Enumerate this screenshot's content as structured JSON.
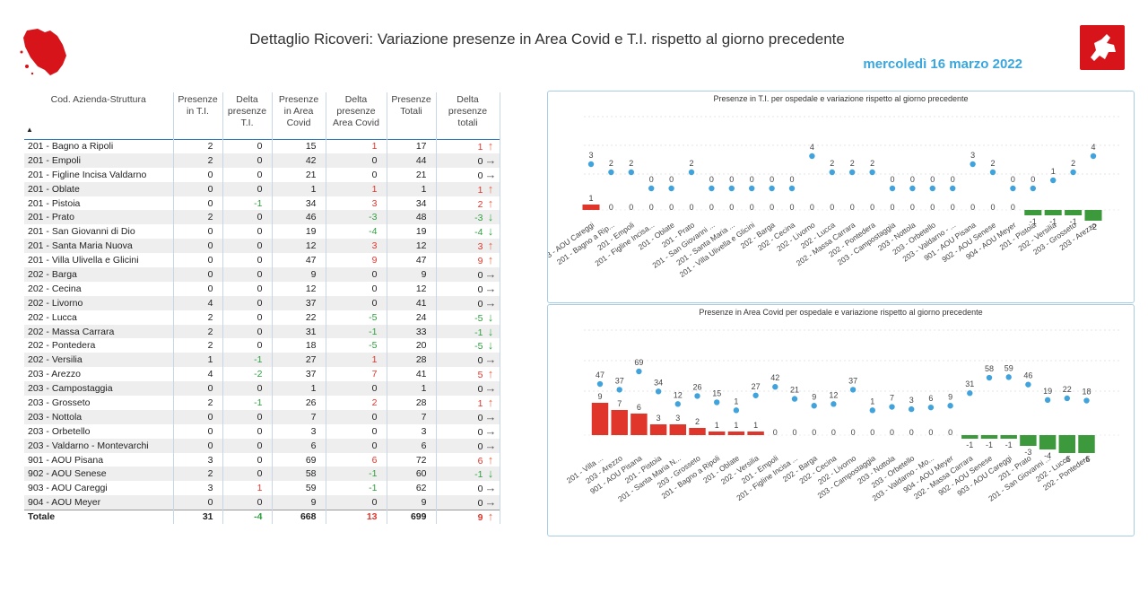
{
  "header": {
    "title": "Dettaglio Ricoveri: Variazione presenze in Area Covid e T.I. rispetto al giorno precedente",
    "date": "mercoledì 16 marzo 2022"
  },
  "table": {
    "columns": [
      "Cod. Azienda-Struttura",
      "Presenze in T.I.",
      "Delta presenze T.I.",
      "Presenze in Area Covid",
      "Delta presenze Area Covid",
      "Presenze Totali",
      "Delta presenze totali"
    ],
    "rows": [
      [
        "201 - Bagno a Ripoli",
        "2",
        "0",
        "15",
        "1",
        "17",
        "1"
      ],
      [
        "201 - Empoli",
        "2",
        "0",
        "42",
        "0",
        "44",
        "0"
      ],
      [
        "201 - Figline Incisa Valdarno",
        "0",
        "0",
        "21",
        "0",
        "21",
        "0"
      ],
      [
        "201 - Oblate",
        "0",
        "0",
        "1",
        "1",
        "1",
        "1"
      ],
      [
        "201 - Pistoia",
        "0",
        "-1",
        "34",
        "3",
        "34",
        "2"
      ],
      [
        "201 - Prato",
        "2",
        "0",
        "46",
        "-3",
        "48",
        "-3"
      ],
      [
        "201 - San Giovanni di Dio",
        "0",
        "0",
        "19",
        "-4",
        "19",
        "-4"
      ],
      [
        "201 - Santa Maria Nuova",
        "0",
        "0",
        "12",
        "3",
        "12",
        "3"
      ],
      [
        "201 - Villa Ulivella e Glicini",
        "0",
        "0",
        "47",
        "9",
        "47",
        "9"
      ],
      [
        "202 - Barga",
        "0",
        "0",
        "9",
        "0",
        "9",
        "0"
      ],
      [
        "202 - Cecina",
        "0",
        "0",
        "12",
        "0",
        "12",
        "0"
      ],
      [
        "202 - Livorno",
        "4",
        "0",
        "37",
        "0",
        "41",
        "0"
      ],
      [
        "202 - Lucca",
        "2",
        "0",
        "22",
        "-5",
        "24",
        "-5"
      ],
      [
        "202 - Massa Carrara",
        "2",
        "0",
        "31",
        "-1",
        "33",
        "-1"
      ],
      [
        "202 - Pontedera",
        "2",
        "0",
        "18",
        "-5",
        "20",
        "-5"
      ],
      [
        "202 - Versilia",
        "1",
        "-1",
        "27",
        "1",
        "28",
        "0"
      ],
      [
        "203 - Arezzo",
        "4",
        "-2",
        "37",
        "7",
        "41",
        "5"
      ],
      [
        "203 - Campostaggia",
        "0",
        "0",
        "1",
        "0",
        "1",
        "0"
      ],
      [
        "203 - Grosseto",
        "2",
        "-1",
        "26",
        "2",
        "28",
        "1"
      ],
      [
        "203 - Nottola",
        "0",
        "0",
        "7",
        "0",
        "7",
        "0"
      ],
      [
        "203 - Orbetello",
        "0",
        "0",
        "3",
        "0",
        "3",
        "0"
      ],
      [
        "203 - Valdarno - Montevarchi",
        "0",
        "0",
        "6",
        "0",
        "6",
        "0"
      ],
      [
        "901 - AOU Pisana",
        "3",
        "0",
        "69",
        "6",
        "72",
        "6"
      ],
      [
        "902 - AOU Senese",
        "2",
        "0",
        "58",
        "-1",
        "60",
        "-1"
      ],
      [
        "903 - AOU Careggi",
        "3",
        "1",
        "59",
        "-1",
        "62",
        "0"
      ],
      [
        "904 - AOU Meyer",
        "0",
        "0",
        "9",
        "0",
        "9",
        "0"
      ]
    ],
    "total": [
      "Totale",
      "31",
      "-4",
      "668",
      "13",
      "699",
      "9"
    ]
  },
  "chart_data": [
    {
      "type": "bar",
      "title": "Presenze in T.I. per ospedale e variazione rispetto al giorno precedente",
      "categories": [
        "903 - AOU Careggi",
        "201 - Bagno a Rip...",
        "201 - Empoli",
        "201 - Figline Incisa...",
        "201 - Oblate",
        "201 - Prato",
        "201 - San Giovanni ...",
        "201 - Santa Maria ...",
        "201 - Villa Ulivella e Glicini",
        "202 - Barga",
        "202 - Cecina",
        "202 - Livorno",
        "202 - Lucca",
        "202 - Massa Carrara",
        "202 - Pontedera",
        "203 - Campostaggia",
        "203 - Nottola",
        "203 - Orbetello",
        "203 - Valdarno - ...",
        "901 - AOU Pisana",
        "902 - AOU Senese",
        "904 - AOU Meyer",
        "201 - Pistoia",
        "202 - Versilia",
        "203 - Grosseto",
        "203 - Arezzo"
      ],
      "series": [
        {
          "name": "Presenze",
          "kind": "dot",
          "values": [
            3,
            2,
            2,
            0,
            0,
            2,
            0,
            0,
            0,
            0,
            0,
            4,
            2,
            2,
            2,
            0,
            0,
            0,
            0,
            3,
            2,
            0,
            0,
            1,
            2,
            4
          ]
        },
        {
          "name": "Delta",
          "kind": "bar",
          "values": [
            1,
            0,
            0,
            0,
            0,
            0,
            0,
            0,
            0,
            0,
            0,
            0,
            0,
            0,
            0,
            0,
            0,
            0,
            0,
            0,
            0,
            0,
            -1,
            -1,
            -1,
            -2
          ]
        }
      ],
      "colors": {
        "dot": "#41a3dc",
        "positive": "#e0352b",
        "negative": "#3c9a3c"
      }
    },
    {
      "type": "bar",
      "title": "Presenze in Area Covid per ospedale e variazione rispetto al giorno precedente",
      "categories": [
        "201 - Villa ...",
        "203 - Arezzo",
        "901 - AOU Pisana",
        "201 - Pistoia",
        "201 - Santa Maria N...",
        "203 - Grosseto",
        "201 - Bagno a Ripoli",
        "201 - Oblate",
        "202 - Versilia",
        "201 - Empoli",
        "201 - Figline Incisa ...",
        "202 - Barga",
        "202 - Cecina",
        "202 - Livorno",
        "203 - Campostaggia",
        "203 - Nottola",
        "203 - Orbetello",
        "203 - Valdarno - Mo...",
        "904 - AOU Meyer",
        "202 - Massa Carrara",
        "902 - AOU Senese",
        "903 - AOU Careggi",
        "201 - Prato",
        "201 - San Giovanni ...",
        "202 - Lucca",
        "202 - Pontedera"
      ],
      "series": [
        {
          "name": "Presenze",
          "kind": "dot",
          "values": [
            47,
            37,
            69,
            34,
            12,
            26,
            15,
            1,
            27,
            42,
            21,
            9,
            12,
            37,
            1,
            7,
            3,
            6,
            9,
            31,
            58,
            59,
            46,
            19,
            22,
            18
          ]
        },
        {
          "name": "Delta",
          "kind": "bar",
          "values": [
            9,
            7,
            6,
            3,
            3,
            2,
            1,
            1,
            1,
            0,
            0,
            0,
            0,
            0,
            0,
            0,
            0,
            0,
            0,
            -1,
            -1,
            -1,
            -3,
            -4,
            -5,
            -5
          ]
        }
      ],
      "colors": {
        "dot": "#41a3dc",
        "positive": "#e0352b",
        "negative": "#3c9a3c"
      }
    }
  ]
}
